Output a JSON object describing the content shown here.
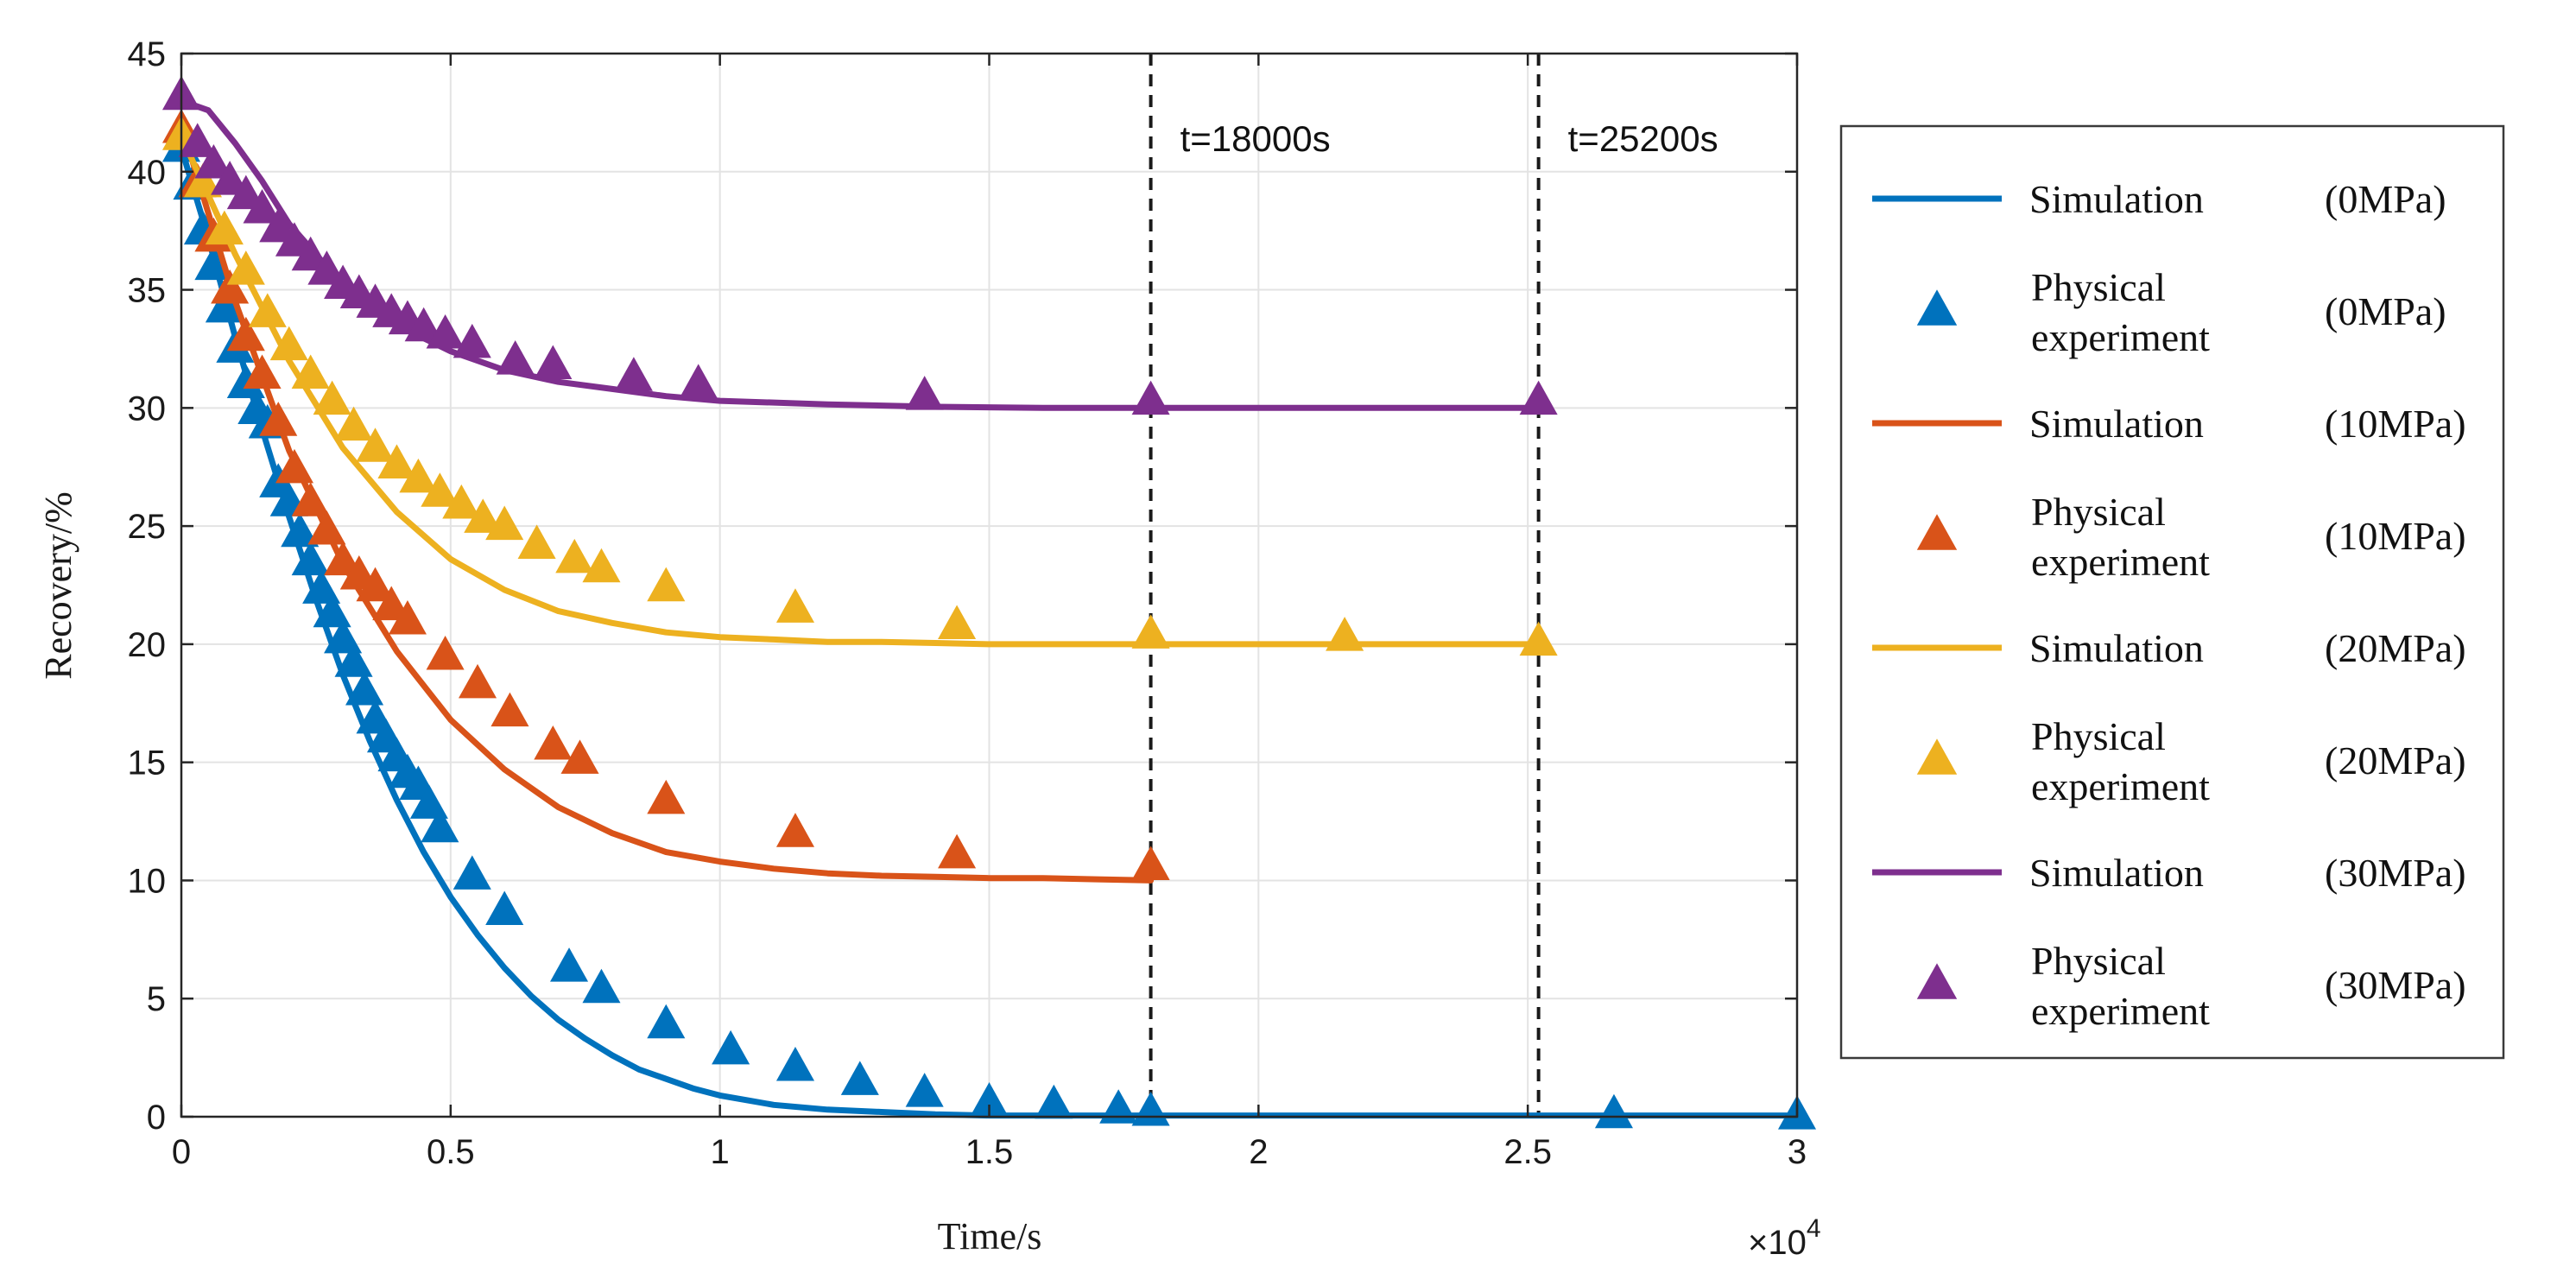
{
  "chart_data": {
    "type": "line",
    "title": "",
    "xlabel": "Time/s",
    "ylabel": "Recovery/%",
    "x_multiplier_label": "×10",
    "x_multiplier_exponent": "4",
    "xlim": [
      0,
      3
    ],
    "ylim": [
      0,
      45
    ],
    "xticks": [
      0,
      0.5,
      1,
      1.5,
      2,
      2.5,
      3
    ],
    "xtick_labels": [
      "0",
      "0.5",
      "1",
      "1.5",
      "2",
      "2.5",
      "3"
    ],
    "yticks": [
      0,
      5,
      10,
      15,
      20,
      25,
      30,
      35,
      40,
      45
    ],
    "ytick_labels": [
      "0",
      "5",
      "10",
      "15",
      "20",
      "25",
      "30",
      "35",
      "40",
      "45"
    ],
    "grid": true,
    "legend_position": "right",
    "reference_lines": [
      {
        "x": 1.8,
        "label": "t=18000s"
      },
      {
        "x": 2.52,
        "label": "t=25200s"
      }
    ],
    "series": [
      {
        "name": "Simulation",
        "pressure": "(0MPa)",
        "kind": "line",
        "color": "#0072BD",
        "x": [
          0,
          0.05,
          0.1,
          0.15,
          0.2,
          0.25,
          0.3,
          0.35,
          0.4,
          0.45,
          0.5,
          0.55,
          0.6,
          0.65,
          0.7,
          0.75,
          0.8,
          0.85,
          0.9,
          0.95,
          1.0,
          1.1,
          1.2,
          1.3,
          1.4,
          1.5,
          1.6,
          1.8,
          2.0,
          2.5,
          3.0
        ],
        "values": [
          41.0,
          37.2,
          33.0,
          29.1,
          25.4,
          21.9,
          18.7,
          15.9,
          13.4,
          11.2,
          9.3,
          7.7,
          6.3,
          5.1,
          4.1,
          3.3,
          2.6,
          2.0,
          1.6,
          1.2,
          0.9,
          0.5,
          0.3,
          0.2,
          0.1,
          0.05,
          0.05,
          0.05,
          0.05,
          0.05,
          0.05
        ]
      },
      {
        "name": "Physical experiment",
        "pressure": "(0MPa)",
        "kind": "marker",
        "color": "#0072BD",
        "x": [
          0,
          0.02,
          0.04,
          0.06,
          0.08,
          0.1,
          0.12,
          0.14,
          0.16,
          0.18,
          0.2,
          0.22,
          0.24,
          0.26,
          0.28,
          0.3,
          0.32,
          0.34,
          0.36,
          0.38,
          0.4,
          0.42,
          0.44,
          0.46,
          0.48,
          0.54,
          0.6,
          0.72,
          0.78,
          0.9,
          1.02,
          1.14,
          1.26,
          1.38,
          1.5,
          1.62,
          1.74,
          1.8,
          2.66,
          3.0
        ],
        "values": [
          41.0,
          39.4,
          37.5,
          36.0,
          34.2,
          32.5,
          31.0,
          29.9,
          29.3,
          26.8,
          26.0,
          24.7,
          23.5,
          22.3,
          21.3,
          20.2,
          19.2,
          18.0,
          16.8,
          16.0,
          15.2,
          14.5,
          14.0,
          13.2,
          12.2,
          10.2,
          8.7,
          6.3,
          5.4,
          3.9,
          2.8,
          2.1,
          1.5,
          1.0,
          0.6,
          0.5,
          0.3,
          0.2,
          0.1,
          0.05
        ]
      },
      {
        "name": "Simulation",
        "pressure": "(10MPa)",
        "kind": "line",
        "color": "#D95319",
        "x": [
          0,
          0.1,
          0.2,
          0.3,
          0.4,
          0.5,
          0.6,
          0.7,
          0.8,
          0.9,
          1.0,
          1.1,
          1.2,
          1.3,
          1.4,
          1.5,
          1.6,
          1.7,
          1.8
        ],
        "values": [
          42.0,
          34.5,
          28.2,
          23.4,
          19.7,
          16.8,
          14.7,
          13.1,
          12.0,
          11.2,
          10.8,
          10.5,
          10.3,
          10.2,
          10.15,
          10.1,
          10.1,
          10.05,
          10.0
        ]
      },
      {
        "name": "Physical experiment",
        "pressure": "(10MPa)",
        "kind": "marker",
        "color": "#D95319",
        "x": [
          0,
          0.03,
          0.06,
          0.09,
          0.12,
          0.15,
          0.18,
          0.21,
          0.24,
          0.27,
          0.3,
          0.33,
          0.36,
          0.39,
          0.42,
          0.49,
          0.55,
          0.61,
          0.69,
          0.74,
          0.9,
          1.14,
          1.44,
          1.8
        ],
        "values": [
          41.8,
          39.5,
          37.2,
          35.0,
          33.0,
          31.4,
          29.4,
          27.4,
          26.0,
          24.8,
          23.5,
          22.9,
          22.4,
          21.6,
          21.0,
          19.5,
          18.3,
          17.1,
          15.7,
          15.1,
          13.4,
          12.0,
          11.1,
          10.6
        ]
      },
      {
        "name": "Simulation",
        "pressure": "(20MPa)",
        "kind": "line",
        "color": "#EDB120",
        "x": [
          0,
          0.1,
          0.2,
          0.3,
          0.4,
          0.5,
          0.6,
          0.7,
          0.8,
          0.9,
          1.0,
          1.1,
          1.2,
          1.3,
          1.4,
          1.5,
          1.8,
          2.1,
          2.52
        ],
        "values": [
          41.5,
          36.5,
          32.0,
          28.3,
          25.6,
          23.6,
          22.3,
          21.4,
          20.9,
          20.5,
          20.3,
          20.2,
          20.1,
          20.1,
          20.05,
          20.0,
          20.0,
          20.0,
          20.0
        ]
      },
      {
        "name": "Physical experiment",
        "pressure": "(20MPa)",
        "kind": "marker",
        "color": "#EDB120",
        "x": [
          0,
          0.04,
          0.08,
          0.12,
          0.16,
          0.2,
          0.24,
          0.28,
          0.32,
          0.36,
          0.4,
          0.44,
          0.48,
          0.52,
          0.56,
          0.6,
          0.66,
          0.73,
          0.78,
          0.9,
          1.14,
          1.44,
          1.8,
          2.16,
          2.52
        ],
        "values": [
          41.5,
          39.5,
          37.5,
          35.8,
          34.0,
          32.6,
          31.4,
          30.3,
          29.2,
          28.3,
          27.6,
          27.0,
          26.4,
          25.9,
          25.3,
          25.0,
          24.2,
          23.6,
          23.2,
          22.4,
          21.5,
          20.8,
          20.4,
          20.3,
          20.1
        ]
      },
      {
        "name": "Simulation",
        "pressure": "(30MPa)",
        "kind": "line",
        "color": "#7E2F8E",
        "x": [
          0,
          0.05,
          0.1,
          0.15,
          0.2,
          0.3,
          0.4,
          0.5,
          0.6,
          0.7,
          0.8,
          0.9,
          1.0,
          1.2,
          1.4,
          1.6,
          2.0,
          2.52
        ],
        "values": [
          43.0,
          42.6,
          41.2,
          39.6,
          37.8,
          35.2,
          33.5,
          32.4,
          31.6,
          31.1,
          30.8,
          30.5,
          30.3,
          30.15,
          30.05,
          30.0,
          30.0,
          30.0
        ]
      },
      {
        "name": "Physical experiment",
        "pressure": "(30MPa)",
        "kind": "marker",
        "color": "#7E2F8E",
        "x": [
          0,
          0.03,
          0.06,
          0.09,
          0.12,
          0.15,
          0.18,
          0.21,
          0.24,
          0.27,
          0.3,
          0.33,
          0.36,
          0.39,
          0.42,
          0.45,
          0.49,
          0.54,
          0.62,
          0.69,
          0.84,
          0.96,
          1.38,
          1.8,
          2.52
        ],
        "values": [
          43.2,
          41.2,
          40.3,
          39.6,
          39.0,
          38.4,
          37.6,
          37.0,
          36.4,
          35.8,
          35.2,
          34.8,
          34.4,
          34.0,
          33.7,
          33.4,
          33.1,
          32.7,
          32.0,
          31.8,
          31.3,
          31.0,
          30.5,
          30.3,
          30.3
        ]
      }
    ]
  }
}
